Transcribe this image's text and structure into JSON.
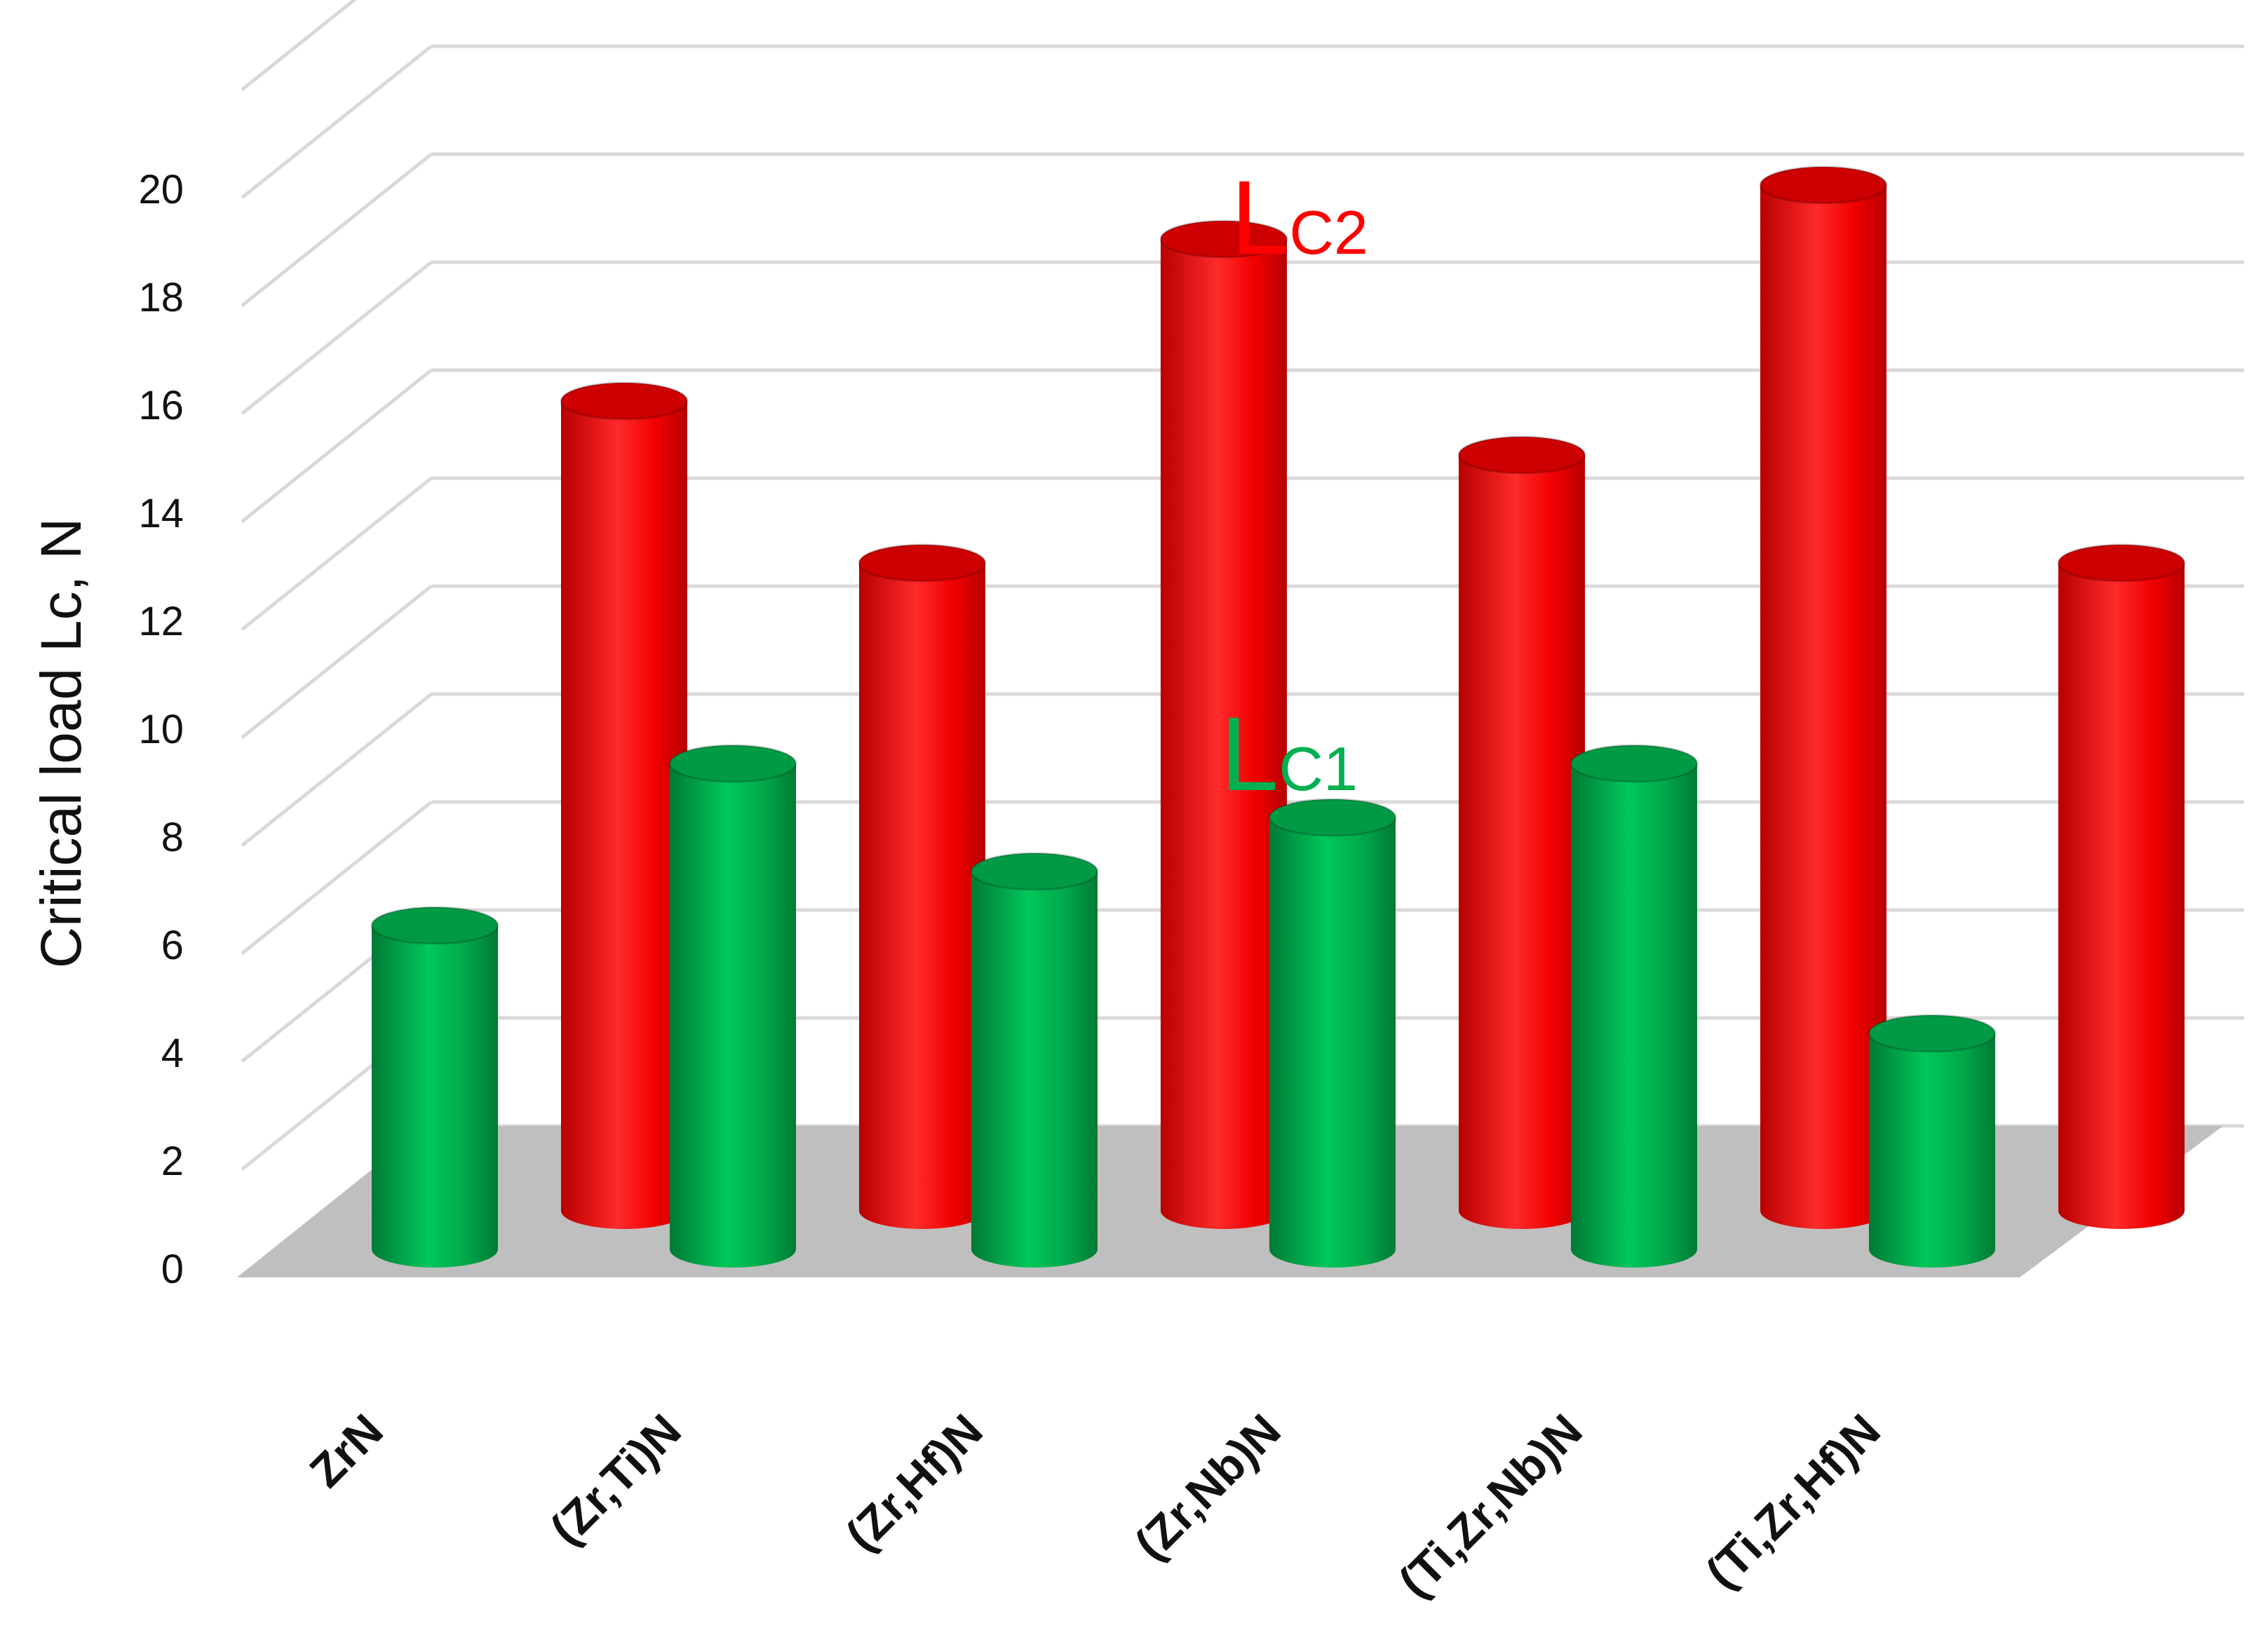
{
  "chart_data": {
    "type": "bar",
    "style": "3d-cylinder",
    "ylabel": "Critical load Lc, N",
    "xlabel": "",
    "ylim": [
      0,
      22
    ],
    "y_ticks": [
      0,
      2,
      4,
      6,
      8,
      10,
      12,
      14,
      16,
      18,
      20
    ],
    "grid": true,
    "categories": [
      "ZrN",
      "(Zr,Ti)N",
      "(Zr,Hf)N",
      "(Zr,Nb)N",
      "(Ti,Zr,Nb)N",
      "(Ti,Zr,Hf)N"
    ],
    "series": [
      {
        "name": "Lc1",
        "label_main": "L",
        "label_sub": "C1",
        "color": "#00b050",
        "values": [
          6,
          9,
          7,
          8,
          9,
          4
        ]
      },
      {
        "name": "Lc2",
        "label_main": "L",
        "label_sub": "C2",
        "color": "#ff0000",
        "values": [
          15,
          12,
          18,
          14,
          19,
          12
        ]
      }
    ],
    "floor_color": "#bfbfbf",
    "grid_color": "#d9d9d9"
  }
}
